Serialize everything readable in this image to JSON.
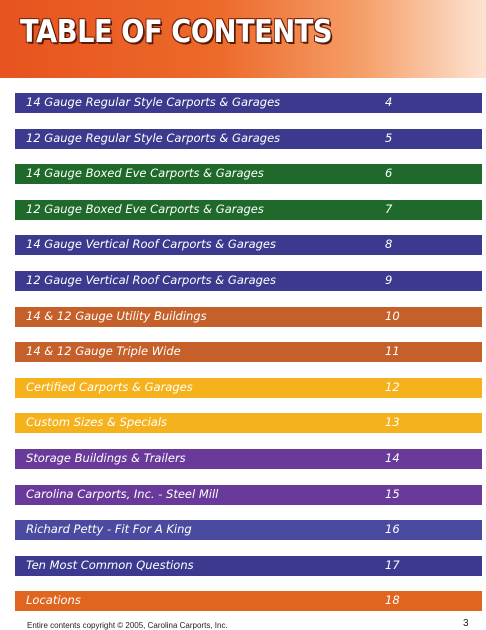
{
  "header": {
    "title": "TABLE OF CONTENTS"
  },
  "colors": {
    "purple_blue": "#3c3a8f",
    "green": "#1f6a2a",
    "orange_brown": "#c6602a",
    "gold": "#f5b21c",
    "violet": "#6a3a9a",
    "orange": "#e0651f"
  },
  "entries": [
    {
      "title": "14 Gauge Regular Style Carports & Garages",
      "page": "4",
      "color": "#3c3a8f"
    },
    {
      "title": "12 Gauge Regular Style Carports & Garages",
      "page": "5",
      "color": "#3c3a8f"
    },
    {
      "title": "14 Gauge Boxed Eve Carports & Garages",
      "page": "6",
      "color": "#1f6a2a"
    },
    {
      "title": "12 Gauge Boxed Eve Carports & Garages",
      "page": "7",
      "color": "#1f6a2a"
    },
    {
      "title": "14 Gauge Vertical Roof Carports & Garages",
      "page": "8",
      "color": "#3c3a8f"
    },
    {
      "title": "12 Gauge Vertical Roof Carports & Garages",
      "page": "9",
      "color": "#3c3a8f"
    },
    {
      "title": "14 & 12 Gauge Utility Buildings",
      "page": "10",
      "color": "#c6602a"
    },
    {
      "title": "14 & 12  Gauge Triple Wide",
      "page": "11",
      "color": "#c6602a"
    },
    {
      "title": "Certified Carports & Garages",
      "page": "12",
      "color": "#f5b21c"
    },
    {
      "title": "Custom Sizes & Specials",
      "page": "13",
      "color": "#f5b21c"
    },
    {
      "title": "Storage Buildings & Trailers",
      "page": "14",
      "color": "#6a3a9a"
    },
    {
      "title": "Carolina Carports, Inc. - Steel Mill",
      "page": "15",
      "color": "#6a3a9a"
    },
    {
      "title": "Richard Petty - Fit For A King",
      "page": "16",
      "color": "#4a4aa0"
    },
    {
      "title": "Ten Most Common Questions",
      "page": "17",
      "color": "#3c3a8f"
    },
    {
      "title": "Locations",
      "page": "18",
      "color": "#e0651f"
    }
  ],
  "footer": {
    "copyright": "Entire contents copyright © 2005, Carolina Carports, Inc.",
    "page_number": "3"
  }
}
